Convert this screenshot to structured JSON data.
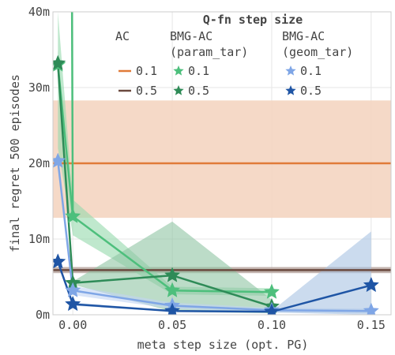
{
  "chart_data": {
    "type": "line",
    "xlabel": "meta step size (opt. PG)",
    "ylabel": "final regret 500 episodes",
    "xlim": [
      -0.01,
      0.16
    ],
    "ylim": [
      0,
      40
    ],
    "x_ticks": [
      0.0,
      0.05,
      0.1,
      0.15
    ],
    "x_tick_labels": [
      "0.00",
      "0.05",
      "0.10",
      "0.15"
    ],
    "y_ticks": [
      0,
      10,
      20,
      30,
      40
    ],
    "y_tick_labels": [
      "0m",
      "10m",
      "20m",
      "30m",
      "40m"
    ],
    "grid": true,
    "legend_placement": "top-right",
    "legend": {
      "title": "Q-fn step size",
      "col_headers": [
        "AC",
        "BMG-AC\n(param_tar)",
        "BMG-AC\n(geom_tar)"
      ],
      "rows": [
        {
          "ac": "0.1",
          "param": "0.1",
          "geom": "0.1"
        },
        {
          "ac": "0.5",
          "param": "0.5",
          "geom": "0.5"
        }
      ]
    },
    "hlines": [
      {
        "name": "AC 0.1",
        "value": 20.0,
        "band": [
          12.8,
          28.3
        ],
        "color": "#e07b39",
        "band_color": "#f3d2bd"
      },
      {
        "name": "AC 0.5",
        "value": 5.9,
        "band": [
          5.5,
          6.3
        ],
        "color": "#6b4a3f",
        "band_color": "#b9a7a1"
      }
    ],
    "series": [
      {
        "name": "BMG-AC (param_tar) 0.1",
        "color": "#4dbf7c",
        "band_color": "#95d9ac",
        "x": [
          -0.0075,
          0.0,
          0.05,
          0.1
        ],
        "values": [
          33.0,
          13.0,
          3.2,
          3.0
        ],
        "band_low": [
          22.0,
          10.5,
          2.7,
          2.5
        ],
        "band_high": [
          40.0,
          15.2,
          3.7,
          3.5
        ]
      },
      {
        "name": "BMG-AC (param_tar) 0.5",
        "color": "#2e8b57",
        "band_color": "#8fc4a3",
        "x": [
          -0.0075,
          0.0,
          0.05,
          0.1
        ],
        "values": [
          33.2,
          4.2,
          5.2,
          1.1
        ],
        "band_low": [
          31.5,
          4.0,
          0.4,
          0.2
        ],
        "band_high": [
          35.0,
          4.4,
          12.3,
          2.0
        ]
      },
      {
        "name": "BMG-AC (geom_tar) 0.1",
        "color": "#7fa6e6",
        "band_color": "#c1d4f3",
        "x": [
          -0.0075,
          0.0,
          0.05,
          0.1,
          0.15
        ],
        "values": [
          20.3,
          3.2,
          1.2,
          0.6,
          0.5
        ],
        "band_low": [
          19.8,
          2.6,
          0.8,
          0.3,
          0.2
        ],
        "band_high": [
          20.8,
          3.8,
          1.6,
          0.9,
          0.8
        ]
      },
      {
        "name": "BMG-AC (geom_tar) 0.5",
        "color": "#1f55a5",
        "band_color": "#a9c3e3",
        "x": [
          -0.0075,
          0.0,
          0.05,
          0.1,
          0.15
        ],
        "values": [
          7.0,
          1.4,
          0.5,
          0.4,
          3.9
        ],
        "band_low": [
          6.6,
          1.2,
          0.4,
          0.3,
          0.0
        ],
        "band_high": [
          7.4,
          1.6,
          0.6,
          0.5,
          11.0
        ]
      }
    ]
  },
  "legend_colors": {
    "ac_01": "#e07b39",
    "ac_05": "#6b4a3f",
    "param_01": "#4dbf7c",
    "param_05": "#2e8b57",
    "geom_01": "#7fa6e6",
    "geom_05": "#1f55a5"
  }
}
